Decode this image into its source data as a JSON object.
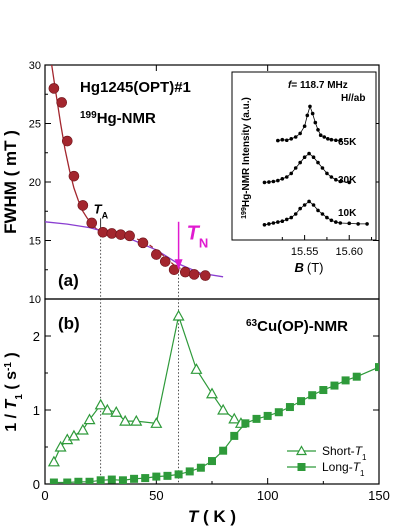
{
  "chart_data": [
    {
      "panel": "a",
      "type": "scatter",
      "panel_label": "(a)",
      "title": "Hg1245(OPT)#1",
      "subtitle_mass": "199",
      "subtitle_rest": "Hg-NMR",
      "ylabel": "FWHM  ( mT )",
      "xlim": [
        0,
        150
      ],
      "ylim": [
        10,
        30
      ],
      "yticks": [
        10,
        15,
        20,
        25,
        30
      ],
      "series": [
        {
          "marker": "circle",
          "color": "#a3262e",
          "x": [
            4,
            7.5,
            10,
            13,
            17,
            21,
            26,
            30,
            34,
            38,
            44,
            50,
            54,
            58,
            63,
            67,
            72
          ],
          "y": [
            28.0,
            26.8,
            23.5,
            20.5,
            18.0,
            16.5,
            15.7,
            15.6,
            15.5,
            15.4,
            14.8,
            13.8,
            13.2,
            12.5,
            12.3,
            12.1,
            12.0
          ]
        }
      ],
      "fit_curves": [
        {
          "color": "#a3262e",
          "x": [
            3,
            5,
            7,
            9,
            11,
            13,
            15,
            17,
            19,
            21,
            23,
            26,
            30
          ],
          "y": [
            30,
            27.5,
            25.0,
            22.8,
            21.0,
            19.5,
            18.4,
            17.5,
            16.9,
            16.4,
            16.0,
            15.7,
            15.6
          ]
        },
        {
          "color": "#8a3ed1",
          "x": [
            0,
            10,
            20,
            30,
            40,
            50,
            60,
            70,
            80
          ],
          "y": [
            16.6,
            16.4,
            16.1,
            15.6,
            15.0,
            14.2,
            13.0,
            12.2,
            11.9
          ]
        }
      ],
      "dashed_fit": {
        "color": "#a3262e",
        "x": [
          26,
          35,
          45,
          52,
          58,
          64,
          70
        ],
        "y": [
          15.7,
          15.5,
          14.9,
          13.9,
          12.9,
          12.3,
          12.1
        ]
      },
      "annotations": {
        "TA": {
          "label": "T",
          "sub": "A",
          "x": 25
        },
        "TN": {
          "label": "T",
          "sub": "N",
          "x": 60,
          "color": "#e01bd0"
        }
      },
      "inset": {
        "title": "f = 118.7 MHz",
        "title_parts": {
          "f": "f",
          "rest": "= 118.7 MHz"
        },
        "field": "H//ab",
        "ylabel_mass": "199",
        "ylabel_rest": "Hg-NMR Intensity (a.u.)",
        "xlabel": "B",
        "xunit": "(T)",
        "xlim": [
          15.5,
          15.63
        ],
        "xticks": [
          "15.55",
          "15.60"
        ],
        "xticks_values": [
          15.55,
          15.6
        ],
        "traces": [
          {
            "label": "65K",
            "x": [
              15.52,
              15.525,
              15.53,
              15.535,
              15.54,
              15.545,
              15.55,
              15.553,
              15.556,
              15.559,
              15.562,
              15.565,
              15.568,
              15.572,
              15.576,
              15.58,
              15.585,
              15.59
            ],
            "y": [
              0.8,
              0.85,
              0.82,
              0.9,
              1.0,
              1.2,
              1.6,
              2.2,
              2.7,
              2.3,
              1.8,
              1.4,
              1.1,
              1.0,
              0.9,
              0.85,
              0.82,
              0.8
            ]
          },
          {
            "label": "30K",
            "x": [
              15.505,
              15.51,
              15.515,
              15.52,
              15.525,
              15.53,
              15.535,
              15.54,
              15.545,
              15.55,
              15.555,
              15.56,
              15.565,
              15.57,
              15.575,
              15.58,
              15.585,
              15.59,
              15.6
            ],
            "y": [
              0.7,
              0.72,
              0.75,
              0.8,
              0.9,
              1.0,
              1.2,
              1.5,
              1.8,
              2.1,
              2.3,
              2.1,
              1.8,
              1.5,
              1.2,
              1.0,
              0.85,
              0.75,
              0.7
            ]
          },
          {
            "label": "10K",
            "x": [
              15.505,
              15.51,
              15.515,
              15.52,
              15.525,
              15.53,
              15.535,
              15.54,
              15.545,
              15.55,
              15.555,
              15.56,
              15.565,
              15.57,
              15.575,
              15.58,
              15.585,
              15.59,
              15.6,
              15.61,
              15.62
            ],
            "y": [
              0.4,
              0.45,
              0.5,
              0.55,
              0.6,
              0.7,
              0.8,
              1.0,
              1.3,
              1.5,
              1.7,
              1.5,
              1.2,
              1.0,
              0.8,
              0.65,
              0.55,
              0.5,
              0.48,
              0.45,
              0.45
            ]
          }
        ]
      }
    },
    {
      "panel": "b",
      "type": "line",
      "panel_label": "(b)",
      "title_mass": "63",
      "title_rest": "Cu(OP)-NMR",
      "ylabel": "1 / T1 ( s-1 )",
      "xlabel": "T ( K )",
      "xlim": [
        0,
        150
      ],
      "ylim": [
        0,
        2.5
      ],
      "xticks": [
        0,
        50,
        100,
        150
      ],
      "yticks": [
        0,
        1,
        2
      ],
      "series": [
        {
          "name": "Short-T1",
          "marker": "triangle-open",
          "color": "#2e9a3a",
          "x": [
            4,
            7,
            10,
            13,
            17,
            20,
            25,
            28,
            32,
            36,
            41,
            50,
            60,
            68,
            75,
            80,
            85,
            88
          ],
          "y": [
            0.3,
            0.5,
            0.6,
            0.65,
            0.73,
            0.87,
            1.07,
            1.0,
            0.97,
            0.85,
            0.85,
            0.82,
            2.27,
            1.55,
            1.22,
            1.0,
            0.88,
            0.82
          ]
        },
        {
          "name": "Long-T1",
          "marker": "square-filled",
          "color": "#2e9a3a",
          "x": [
            4,
            10,
            15,
            20,
            25,
            30,
            35,
            40,
            45,
            50,
            55,
            60,
            65,
            70,
            75,
            80,
            85,
            90,
            95,
            100,
            105,
            110,
            115,
            120,
            125,
            130,
            135,
            140,
            150
          ],
          "y": [
            0.02,
            0.02,
            0.03,
            0.03,
            0.05,
            0.06,
            0.05,
            0.07,
            0.08,
            0.1,
            0.11,
            0.13,
            0.17,
            0.22,
            0.31,
            0.45,
            0.65,
            0.82,
            0.88,
            0.92,
            0.97,
            1.04,
            1.12,
            1.2,
            1.27,
            1.33,
            1.4,
            1.45,
            1.58
          ]
        }
      ],
      "legend_position": "bottom-right"
    }
  ]
}
